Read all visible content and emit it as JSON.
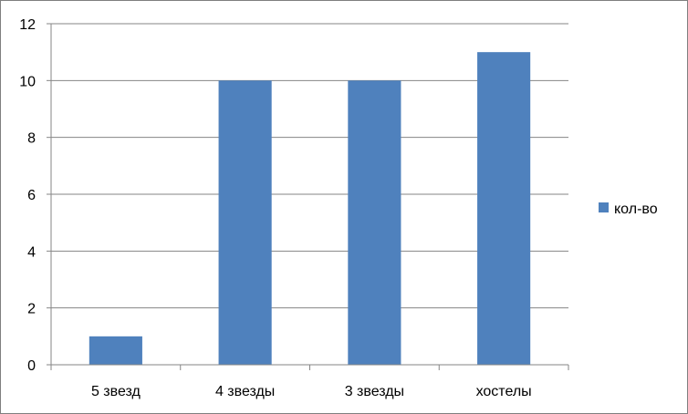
{
  "chart_data": {
    "type": "bar",
    "categories": [
      "5 звезд",
      "4 звезды",
      "3 звезды",
      "хостелы"
    ],
    "series": [
      {
        "name": "кол-во",
        "values": [
          1,
          10,
          10,
          11
        ]
      }
    ],
    "ylim": [
      0,
      12
    ],
    "yticks": [
      "0",
      "2",
      "4",
      "6",
      "8",
      "10",
      "12"
    ],
    "grid": true,
    "legend_position": "right",
    "bar_color": "#4F81BD",
    "grid_color": "#868686",
    "axis_color": "#868686"
  }
}
